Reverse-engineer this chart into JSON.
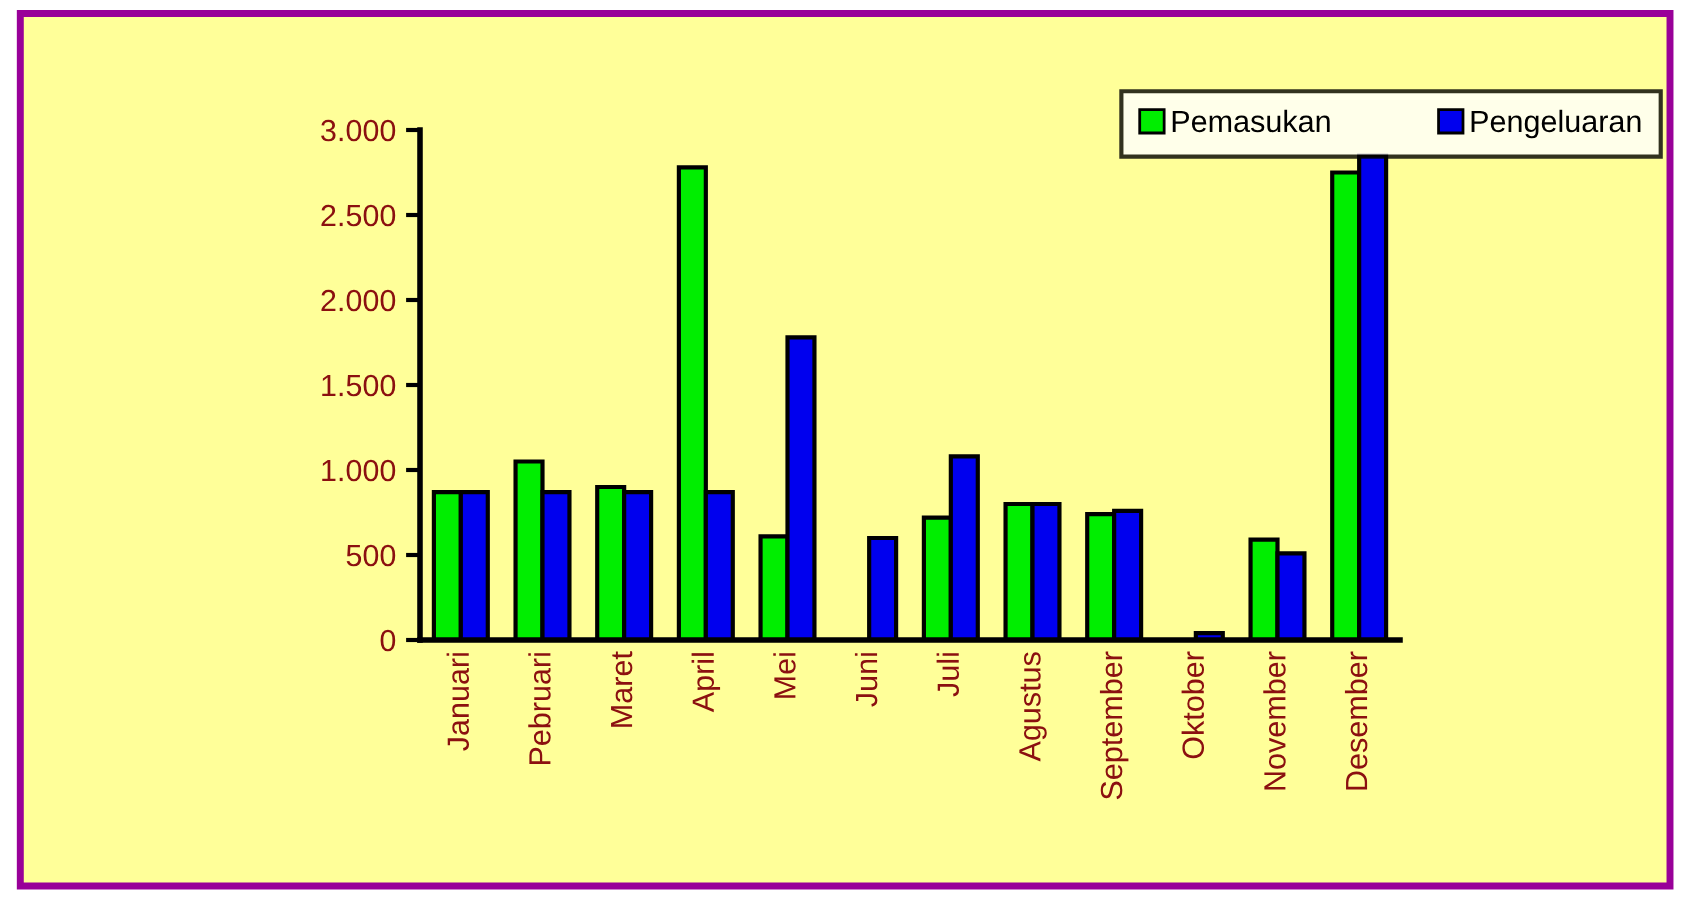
{
  "chart_data": {
    "type": "bar",
    "categories": [
      "Januari",
      "Pebruari",
      "Maret",
      "April",
      "Mei",
      "Juni",
      "Juli",
      "Agustus",
      "September",
      "Oktober",
      "November",
      "Desember"
    ],
    "series": [
      {
        "name": "Pemasukan",
        "color": "#00ee00",
        "values": [
          870,
          1050,
          900,
          2780,
          610,
          null,
          720,
          800,
          740,
          null,
          590,
          2750
        ]
      },
      {
        "name": "Pengeluaran",
        "color": "#0000ee",
        "values": [
          870,
          870,
          870,
          870,
          1780,
          600,
          1080,
          800,
          760,
          40,
          510,
          2850
        ]
      }
    ],
    "ylim": [
      0,
      3000
    ],
    "yticks": [
      0,
      {
        "value": 500,
        "label": "500"
      },
      {
        "value": 1000,
        "label": "1.000"
      },
      {
        "value": 1500,
        "label": "1.500"
      },
      {
        "value": 2000,
        "label": "2.000"
      },
      {
        "value": 2500,
        "label": "2.500"
      },
      {
        "value": 3000,
        "label": "3.000"
      }
    ],
    "legend": "top right",
    "grid": false
  }
}
